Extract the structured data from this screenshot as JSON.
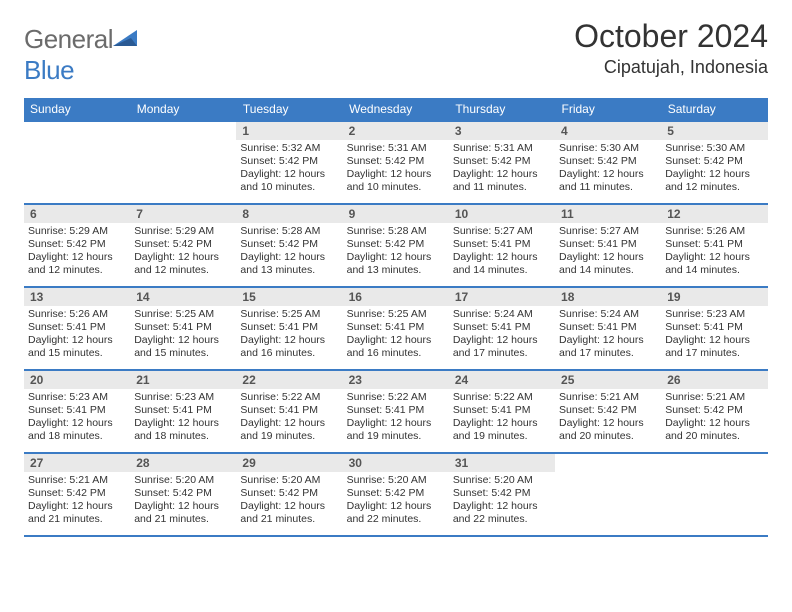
{
  "logo": {
    "word1": "General",
    "word2": "Blue"
  },
  "header": {
    "title": "October 2024",
    "subtitle": "Cipatujah, Indonesia"
  },
  "colors": {
    "accent": "#3b7bc4",
    "daynum_bg": "#e9e9e9",
    "text": "#333333",
    "logo_gray": "#6b6b6b"
  },
  "weekdays": [
    "Sunday",
    "Monday",
    "Tuesday",
    "Wednesday",
    "Thursday",
    "Friday",
    "Saturday"
  ],
  "grid": [
    [
      null,
      null,
      {
        "n": "1",
        "sr": "5:32 AM",
        "ss": "5:42 PM",
        "dl": "12 hours and 10 minutes."
      },
      {
        "n": "2",
        "sr": "5:31 AM",
        "ss": "5:42 PM",
        "dl": "12 hours and 10 minutes."
      },
      {
        "n": "3",
        "sr": "5:31 AM",
        "ss": "5:42 PM",
        "dl": "12 hours and 11 minutes."
      },
      {
        "n": "4",
        "sr": "5:30 AM",
        "ss": "5:42 PM",
        "dl": "12 hours and 11 minutes."
      },
      {
        "n": "5",
        "sr": "5:30 AM",
        "ss": "5:42 PM",
        "dl": "12 hours and 12 minutes."
      }
    ],
    [
      {
        "n": "6",
        "sr": "5:29 AM",
        "ss": "5:42 PM",
        "dl": "12 hours and 12 minutes."
      },
      {
        "n": "7",
        "sr": "5:29 AM",
        "ss": "5:42 PM",
        "dl": "12 hours and 12 minutes."
      },
      {
        "n": "8",
        "sr": "5:28 AM",
        "ss": "5:42 PM",
        "dl": "12 hours and 13 minutes."
      },
      {
        "n": "9",
        "sr": "5:28 AM",
        "ss": "5:42 PM",
        "dl": "12 hours and 13 minutes."
      },
      {
        "n": "10",
        "sr": "5:27 AM",
        "ss": "5:41 PM",
        "dl": "12 hours and 14 minutes."
      },
      {
        "n": "11",
        "sr": "5:27 AM",
        "ss": "5:41 PM",
        "dl": "12 hours and 14 minutes."
      },
      {
        "n": "12",
        "sr": "5:26 AM",
        "ss": "5:41 PM",
        "dl": "12 hours and 14 minutes."
      }
    ],
    [
      {
        "n": "13",
        "sr": "5:26 AM",
        "ss": "5:41 PM",
        "dl": "12 hours and 15 minutes."
      },
      {
        "n": "14",
        "sr": "5:25 AM",
        "ss": "5:41 PM",
        "dl": "12 hours and 15 minutes."
      },
      {
        "n": "15",
        "sr": "5:25 AM",
        "ss": "5:41 PM",
        "dl": "12 hours and 16 minutes."
      },
      {
        "n": "16",
        "sr": "5:25 AM",
        "ss": "5:41 PM",
        "dl": "12 hours and 16 minutes."
      },
      {
        "n": "17",
        "sr": "5:24 AM",
        "ss": "5:41 PM",
        "dl": "12 hours and 17 minutes."
      },
      {
        "n": "18",
        "sr": "5:24 AM",
        "ss": "5:41 PM",
        "dl": "12 hours and 17 minutes."
      },
      {
        "n": "19",
        "sr": "5:23 AM",
        "ss": "5:41 PM",
        "dl": "12 hours and 17 minutes."
      }
    ],
    [
      {
        "n": "20",
        "sr": "5:23 AM",
        "ss": "5:41 PM",
        "dl": "12 hours and 18 minutes."
      },
      {
        "n": "21",
        "sr": "5:23 AM",
        "ss": "5:41 PM",
        "dl": "12 hours and 18 minutes."
      },
      {
        "n": "22",
        "sr": "5:22 AM",
        "ss": "5:41 PM",
        "dl": "12 hours and 19 minutes."
      },
      {
        "n": "23",
        "sr": "5:22 AM",
        "ss": "5:41 PM",
        "dl": "12 hours and 19 minutes."
      },
      {
        "n": "24",
        "sr": "5:22 AM",
        "ss": "5:41 PM",
        "dl": "12 hours and 19 minutes."
      },
      {
        "n": "25",
        "sr": "5:21 AM",
        "ss": "5:42 PM",
        "dl": "12 hours and 20 minutes."
      },
      {
        "n": "26",
        "sr": "5:21 AM",
        "ss": "5:42 PM",
        "dl": "12 hours and 20 minutes."
      }
    ],
    [
      {
        "n": "27",
        "sr": "5:21 AM",
        "ss": "5:42 PM",
        "dl": "12 hours and 21 minutes."
      },
      {
        "n": "28",
        "sr": "5:20 AM",
        "ss": "5:42 PM",
        "dl": "12 hours and 21 minutes."
      },
      {
        "n": "29",
        "sr": "5:20 AM",
        "ss": "5:42 PM",
        "dl": "12 hours and 21 minutes."
      },
      {
        "n": "30",
        "sr": "5:20 AM",
        "ss": "5:42 PM",
        "dl": "12 hours and 22 minutes."
      },
      {
        "n": "31",
        "sr": "5:20 AM",
        "ss": "5:42 PM",
        "dl": "12 hours and 22 minutes."
      },
      null,
      null
    ]
  ],
  "labels": {
    "sunrise": "Sunrise:",
    "sunset": "Sunset:",
    "daylight": "Daylight:"
  }
}
